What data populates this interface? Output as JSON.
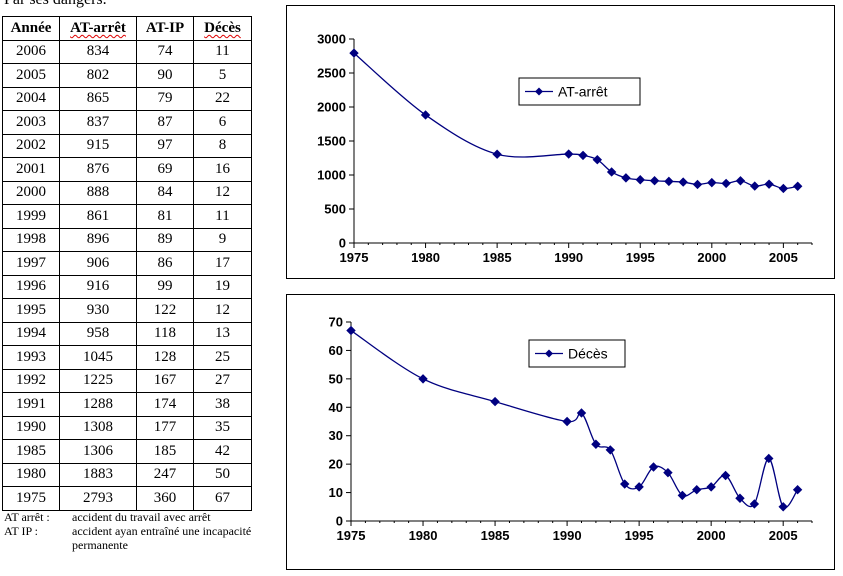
{
  "top_clip_text": "Par ses dangers.",
  "table": {
    "headers": [
      "Année",
      "AT-arrêt",
      "AT-IP",
      "Décès"
    ],
    "rows": [
      [
        "2006",
        "834",
        "74",
        "11"
      ],
      [
        "2005",
        "802",
        "90",
        "5"
      ],
      [
        "2004",
        "865",
        "79",
        "22"
      ],
      [
        "2003",
        "837",
        "87",
        "6"
      ],
      [
        "2002",
        "915",
        "97",
        "8"
      ],
      [
        "2001",
        "876",
        "69",
        "16"
      ],
      [
        "2000",
        "888",
        "84",
        "12"
      ],
      [
        "1999",
        "861",
        "81",
        "11"
      ],
      [
        "1998",
        "896",
        "89",
        "9"
      ],
      [
        "1997",
        "906",
        "86",
        "17"
      ],
      [
        "1996",
        "916",
        "99",
        "19"
      ],
      [
        "1995",
        "930",
        "122",
        "12"
      ],
      [
        "1994",
        "958",
        "118",
        "13"
      ],
      [
        "1993",
        "1045",
        "128",
        "25"
      ],
      [
        "1992",
        "1225",
        "167",
        "27"
      ],
      [
        "1991",
        "1288",
        "174",
        "38"
      ],
      [
        "1990",
        "1308",
        "177",
        "35"
      ],
      [
        "1985",
        "1306",
        "185",
        "42"
      ],
      [
        "1980",
        "1883",
        "247",
        "50"
      ],
      [
        "1975",
        "2793",
        "360",
        "67"
      ]
    ]
  },
  "notes": [
    {
      "key": "AT arrêt :",
      "value": "accident du travail avec arrêt"
    },
    {
      "key": "AT IP :",
      "value": "accident ayan entraîné une incapacité permanente"
    }
  ],
  "chart_data": [
    {
      "type": "line",
      "series": [
        {
          "name": "AT-arrêt",
          "x": [
            1975,
            1980,
            1985,
            1990,
            1991,
            1992,
            1993,
            1994,
            1995,
            1996,
            1997,
            1998,
            1999,
            2000,
            2001,
            2002,
            2003,
            2004,
            2005,
            2006
          ],
          "values": [
            2793,
            1883,
            1306,
            1308,
            1288,
            1225,
            1045,
            958,
            930,
            916,
            906,
            896,
            861,
            888,
            876,
            915,
            837,
            865,
            802,
            834
          ]
        }
      ],
      "xlim": [
        1975,
        2007
      ],
      "ylim": [
        0,
        3000
      ],
      "xticks": [
        1975,
        1980,
        1985,
        1990,
        1995,
        2000,
        2005
      ],
      "yticks": [
        0,
        500,
        1000,
        1500,
        2000,
        2500,
        3000
      ],
      "legend": "top-right",
      "color": "#000080",
      "smooth": true,
      "grid": false
    },
    {
      "type": "line",
      "series": [
        {
          "name": "Décès",
          "x": [
            1975,
            1980,
            1985,
            1990,
            1991,
            1992,
            1993,
            1994,
            1995,
            1996,
            1997,
            1998,
            1999,
            2000,
            2001,
            2002,
            2003,
            2004,
            2005,
            2006
          ],
          "values": [
            67,
            50,
            42,
            35,
            38,
            27,
            25,
            13,
            12,
            19,
            17,
            9,
            11,
            12,
            16,
            8,
            6,
            22,
            5,
            11
          ]
        }
      ],
      "xlim": [
        1975,
        2007
      ],
      "ylim": [
        0,
        70
      ],
      "xticks": [
        1975,
        1980,
        1985,
        1990,
        1995,
        2000,
        2005
      ],
      "yticks": [
        0,
        10,
        20,
        30,
        40,
        50,
        60,
        70
      ],
      "legend": "top-right",
      "color": "#000080",
      "smooth": true,
      "grid": false
    }
  ]
}
